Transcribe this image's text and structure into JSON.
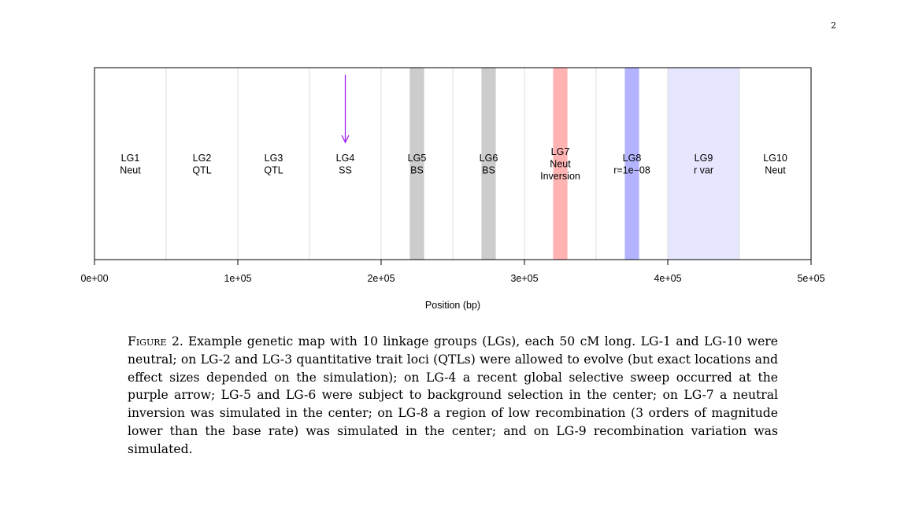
{
  "page": {
    "number": "2"
  },
  "chart_data": {
    "type": "genetic-map",
    "xlabel": "Position (bp)",
    "xlim": [
      0,
      500000
    ],
    "x_ticks": [
      0,
      100000,
      200000,
      300000,
      400000,
      500000
    ],
    "x_tick_labels": [
      "0e+00",
      "1e+05",
      "2e+05",
      "3e+05",
      "4e+05",
      "5e+05"
    ],
    "group_boundaries": [
      50000,
      100000,
      150000,
      200000,
      250000,
      300000,
      350000,
      400000,
      450000
    ],
    "linkage_groups": [
      {
        "name": "LG1",
        "lines": [
          "LG1",
          "Neut"
        ],
        "center": 25000
      },
      {
        "name": "LG2",
        "lines": [
          "LG2",
          "QTL"
        ],
        "center": 75000
      },
      {
        "name": "LG3",
        "lines": [
          "LG3",
          "QTL"
        ],
        "center": 125000
      },
      {
        "name": "LG4",
        "lines": [
          "LG4",
          "SS"
        ],
        "center": 175000
      },
      {
        "name": "LG5",
        "lines": [
          "LG5",
          "BS"
        ],
        "center": 225000
      },
      {
        "name": "LG6",
        "lines": [
          "LG6",
          "BS"
        ],
        "center": 275000
      },
      {
        "name": "LG7",
        "lines": [
          "LG7",
          "Neut",
          "Inversion"
        ],
        "center": 325000
      },
      {
        "name": "LG8",
        "lines": [
          "LG8",
          "r=1e−08"
        ],
        "center": 375000
      },
      {
        "name": "LG9",
        "lines": [
          "LG9",
          "r var"
        ],
        "center": 425000
      },
      {
        "name": "LG10",
        "lines": [
          "LG10",
          "Neut"
        ],
        "center": 475000
      }
    ],
    "regions": [
      {
        "start": 220000,
        "end": 230000,
        "color": "#cccccc",
        "kind": "background selection"
      },
      {
        "start": 270000,
        "end": 280000,
        "color": "#cccccc",
        "kind": "background selection"
      },
      {
        "start": 320000,
        "end": 330000,
        "color": "#ffb3b3",
        "kind": "inversion"
      },
      {
        "start": 370000,
        "end": 380000,
        "color": "#b3b3ff",
        "kind": "low recombination"
      },
      {
        "start": 400000,
        "end": 450000,
        "color": "#e6e6ff",
        "kind": "recombination variation"
      }
    ],
    "sweep_arrow": {
      "position": 175000,
      "color": "#a020f0"
    }
  },
  "caption": {
    "label": "Figure 2.",
    "text": "Example genetic map with 10 linkage groups (LGs), each 50 cM long. LG-1 and LG-10 were neutral; on LG-2 and LG-3 quantitative trait loci (QTLs) were allowed to evolve (but exact locations and effect sizes depended on the simulation); on LG-4 a recent global selective sweep occurred at the purple arrow; LG-5 and LG-6 were subject to background selection in the center; on LG-7 a neutral inversion was simulated in the center; on LG-8 a region of low recombination (3 orders of magnitude lower than the base rate) was simulated in the center; and on LG-9 recombination variation was simulated."
  }
}
